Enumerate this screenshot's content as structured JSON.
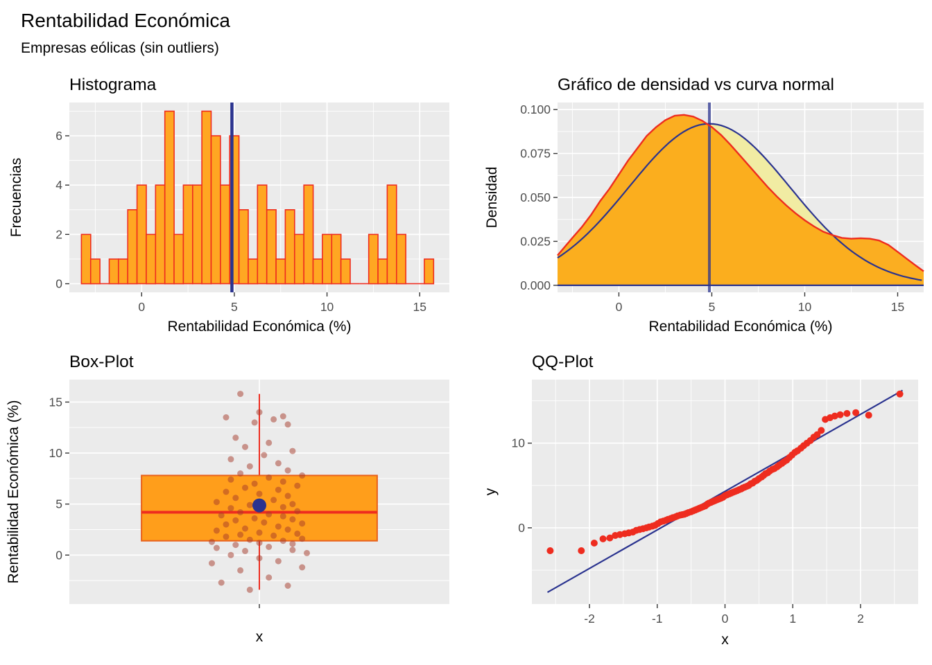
{
  "header": {
    "title": "Rentabilidad Económica",
    "subtitle": "Empresas eólicas (sin outliers)"
  },
  "colors": {
    "panel_bg": "#EBEBEB",
    "grid": "#FFFFFF",
    "bar_fill": "#FFA722",
    "red": "#EE2C1F",
    "navy": "#2A338F",
    "density_fill": "#FBAB18",
    "normal_fill": "#F1ECA3",
    "box_fill": "#FF9E1B",
    "box_stroke": "#E8601C",
    "jitter": "#A63A2A",
    "tick_text": "#4D4D4D"
  },
  "chart_data": [
    {
      "type": "bar",
      "name": "histogram",
      "title": "Histograma",
      "xlabel": "Rentabilidad Económica (%)",
      "ylabel": "Frecuencias",
      "bin_start": -3.25,
      "binwidth": 0.5,
      "counts": [
        2,
        1,
        0,
        1,
        1,
        3,
        4,
        2,
        4,
        7,
        2,
        4,
        4,
        7,
        6,
        4,
        6,
        3,
        1,
        4,
        3,
        1,
        3,
        2,
        4,
        1,
        2,
        2,
        1,
        0,
        0,
        2,
        1,
        4,
        2,
        0,
        0,
        1
      ],
      "mean_line": 4.87,
      "xlim": [
        -3.9,
        16.6
      ],
      "ylim": [
        -0.35,
        7.35
      ],
      "xticks": [
        0,
        5,
        10,
        15
      ],
      "yticks": [
        0,
        2,
        4,
        6
      ],
      "xminor": [
        -2.5,
        2.5,
        7.5,
        12.5
      ],
      "yminor": [
        1,
        3,
        5,
        7
      ]
    },
    {
      "type": "area",
      "name": "density",
      "title": "Gráfico de densidad vs curva normal",
      "xlabel": "Rentabilidad Económica (%)",
      "ylabel": "Densidad",
      "density_points": [
        [
          -3.3,
          0.017
        ],
        [
          -2.5,
          0.027
        ],
        [
          -2,
          0.033
        ],
        [
          -1.5,
          0.04
        ],
        [
          -1,
          0.048
        ],
        [
          -0.5,
          0.055
        ],
        [
          0,
          0.063
        ],
        [
          0.5,
          0.071
        ],
        [
          1,
          0.078
        ],
        [
          1.5,
          0.085
        ],
        [
          2,
          0.09
        ],
        [
          2.5,
          0.094
        ],
        [
          3,
          0.0965
        ],
        [
          3.5,
          0.097
        ],
        [
          4,
          0.096
        ],
        [
          4.5,
          0.0935
        ],
        [
          5,
          0.09
        ],
        [
          5.5,
          0.0855
        ],
        [
          6,
          0.08
        ],
        [
          6.5,
          0.074
        ],
        [
          7,
          0.068
        ],
        [
          7.5,
          0.062
        ],
        [
          8,
          0.056
        ],
        [
          8.5,
          0.0505
        ],
        [
          9,
          0.0455
        ],
        [
          9.5,
          0.041
        ],
        [
          10,
          0.037
        ],
        [
          10.5,
          0.0335
        ],
        [
          11,
          0.0305
        ],
        [
          11.5,
          0.0285
        ],
        [
          12,
          0.027
        ],
        [
          12.5,
          0.0265
        ],
        [
          13,
          0.0268
        ],
        [
          13.5,
          0.0265
        ],
        [
          14,
          0.0255
        ],
        [
          14.5,
          0.023
        ],
        [
          15,
          0.019
        ],
        [
          15.5,
          0.015
        ],
        [
          16,
          0.011
        ],
        [
          16.4,
          0.008
        ]
      ],
      "normal": {
        "mean": 4.87,
        "sd": 4.34
      },
      "mean_line": 4.87,
      "xlim": [
        -3.3,
        16.4
      ],
      "ylim": [
        -0.004,
        0.104
      ],
      "xticks": [
        0,
        5,
        10,
        15
      ],
      "yticks": [
        0,
        0.025,
        0.05,
        0.075,
        0.1
      ],
      "ytick_labels": [
        "0.000",
        "0.025",
        "0.050",
        "0.075",
        "0.100"
      ],
      "xminor": [
        -2.5,
        2.5,
        7.5,
        12.5
      ],
      "yminor": [
        0.0125,
        0.0375,
        0.0625,
        0.0875
      ]
    },
    {
      "type": "box",
      "name": "boxplot",
      "title": "Box-Plot",
      "xlabel": "x",
      "ylabel": "Rentabilidad Económica (%)",
      "stats": {
        "min": -3.4,
        "q1": 1.4,
        "median": 4.2,
        "q3": 7.8,
        "max": 15.8
      },
      "mean": 4.87,
      "box_halfwidth": 0.62,
      "jitter_spread": 0.5,
      "jitter": [
        [
          -0.1,
          -3.4
        ],
        [
          0.3,
          -3.0
        ],
        [
          -0.4,
          -2.7
        ],
        [
          0.1,
          -2.2
        ],
        [
          -0.2,
          -1.5
        ],
        [
          0.45,
          -1.2
        ],
        [
          -0.5,
          -0.8
        ],
        [
          0.2,
          -0.6
        ],
        [
          0.0,
          -0.3
        ],
        [
          -0.3,
          0.0
        ],
        [
          0.5,
          0.2
        ],
        [
          -0.15,
          0.4
        ],
        [
          0.35,
          0.5
        ],
        [
          -0.45,
          0.7
        ],
        [
          0.1,
          0.8
        ],
        [
          -0.25,
          1.0
        ],
        [
          0.35,
          1.1
        ],
        [
          0.0,
          1.2
        ],
        [
          -0.5,
          1.3
        ],
        [
          0.25,
          1.4
        ],
        [
          -0.1,
          1.5
        ],
        [
          0.45,
          1.6
        ],
        [
          -0.35,
          1.8
        ],
        [
          0.15,
          1.9
        ],
        [
          -0.2,
          2.0
        ],
        [
          0.4,
          2.1
        ],
        [
          0.0,
          2.2
        ],
        [
          -0.45,
          2.4
        ],
        [
          0.3,
          2.5
        ],
        [
          -0.15,
          2.6
        ],
        [
          0.2,
          2.8
        ],
        [
          -0.35,
          3.0
        ],
        [
          0.45,
          3.1
        ],
        [
          0.05,
          3.2
        ],
        [
          -0.25,
          3.4
        ],
        [
          0.35,
          3.5
        ],
        [
          -0.05,
          3.6
        ],
        [
          0.25,
          3.8
        ],
        [
          -0.4,
          3.9
        ],
        [
          0.1,
          4.0
        ],
        [
          -0.2,
          4.2
        ],
        [
          0.4,
          4.3
        ],
        [
          0.0,
          4.4
        ],
        [
          -0.3,
          4.6
        ],
        [
          0.25,
          4.7
        ],
        [
          -0.1,
          4.9
        ],
        [
          0.35,
          5.0
        ],
        [
          -0.45,
          5.2
        ],
        [
          0.15,
          5.4
        ],
        [
          -0.25,
          5.6
        ],
        [
          0.3,
          5.8
        ],
        [
          0.0,
          6.0
        ],
        [
          -0.35,
          6.2
        ],
        [
          0.2,
          6.4
        ],
        [
          -0.15,
          6.6
        ],
        [
          0.4,
          6.8
        ],
        [
          -0.05,
          7.0
        ],
        [
          0.25,
          7.2
        ],
        [
          -0.3,
          7.4
        ],
        [
          0.1,
          7.6
        ],
        [
          0.45,
          7.8
        ],
        [
          -0.2,
          8.0
        ],
        [
          0.3,
          8.3
        ],
        [
          -0.1,
          8.7
        ],
        [
          0.2,
          9.0
        ],
        [
          -0.3,
          9.4
        ],
        [
          0.05,
          9.8
        ],
        [
          0.35,
          10.2
        ],
        [
          -0.15,
          10.6
        ],
        [
          0.1,
          11.0
        ],
        [
          -0.25,
          11.5
        ],
        [
          0.3,
          12.8
        ],
        [
          -0.05,
          13.0
        ],
        [
          0.15,
          13.3
        ],
        [
          -0.35,
          13.5
        ],
        [
          0.25,
          13.6
        ],
        [
          0.0,
          14.0
        ],
        [
          -0.2,
          15.8
        ]
      ],
      "xlim": [
        -1,
        1
      ],
      "ylim": [
        -4.8,
        17.2
      ],
      "xticks": [
        0
      ],
      "xtick_labels": [
        ""
      ],
      "yticks": [
        0,
        5,
        10,
        15
      ],
      "yminor": [
        -2.5,
        2.5,
        7.5,
        12.5
      ]
    },
    {
      "type": "scatter",
      "name": "qq",
      "title": "QQ-Plot",
      "xlabel": "x",
      "ylabel": "y",
      "points": [
        [
          -2.58,
          -2.7
        ],
        [
          -2.12,
          -2.7
        ],
        [
          -1.93,
          -1.8
        ],
        [
          -1.8,
          -1.3
        ],
        [
          -1.7,
          -1.2
        ],
        [
          -1.62,
          -0.9
        ],
        [
          -1.55,
          -0.8
        ],
        [
          -1.48,
          -0.7
        ],
        [
          -1.42,
          -0.6
        ],
        [
          -1.36,
          -0.5
        ],
        [
          -1.31,
          -0.3
        ],
        [
          -1.26,
          -0.2
        ],
        [
          -1.21,
          -0.1
        ],
        [
          -1.16,
          0
        ],
        [
          -1.12,
          0.1
        ],
        [
          -1.07,
          0.2
        ],
        [
          -1.03,
          0.3
        ],
        [
          -0.99,
          0.5
        ],
        [
          -0.95,
          0.7
        ],
        [
          -0.91,
          0.8
        ],
        [
          -0.87,
          0.9
        ],
        [
          -0.84,
          1
        ],
        [
          -0.8,
          1.1
        ],
        [
          -0.77,
          1.2
        ],
        [
          -0.73,
          1.3
        ],
        [
          -0.7,
          1.4
        ],
        [
          -0.66,
          1.5
        ],
        [
          -0.63,
          1.55
        ],
        [
          -0.6,
          1.6
        ],
        [
          -0.57,
          1.7
        ],
        [
          -0.54,
          1.8
        ],
        [
          -0.5,
          1.9
        ],
        [
          -0.47,
          2
        ],
        [
          -0.44,
          2.1
        ],
        [
          -0.41,
          2.2
        ],
        [
          -0.38,
          2.3
        ],
        [
          -0.35,
          2.4
        ],
        [
          -0.32,
          2.5
        ],
        [
          -0.29,
          2.6
        ],
        [
          -0.26,
          2.8
        ],
        [
          -0.24,
          2.9
        ],
        [
          -0.21,
          3
        ],
        [
          -0.18,
          3.1
        ],
        [
          -0.15,
          3.2
        ],
        [
          -0.12,
          3.3
        ],
        [
          -0.09,
          3.4
        ],
        [
          -0.06,
          3.5
        ],
        [
          -0.03,
          3.6
        ],
        [
          0,
          3.8
        ],
        [
          0.03,
          3.9
        ],
        [
          0.06,
          4
        ],
        [
          0.09,
          4.1
        ],
        [
          0.12,
          4.2
        ],
        [
          0.15,
          4.3
        ],
        [
          0.18,
          4.4
        ],
        [
          0.21,
          4.5
        ],
        [
          0.24,
          4.6
        ],
        [
          0.26,
          4.7
        ],
        [
          0.29,
          4.8
        ],
        [
          0.32,
          4.9
        ],
        [
          0.35,
          5
        ],
        [
          0.38,
          5.2
        ],
        [
          0.41,
          5.3
        ],
        [
          0.44,
          5.5
        ],
        [
          0.47,
          5.6
        ],
        [
          0.5,
          5.8
        ],
        [
          0.54,
          6
        ],
        [
          0.57,
          6.2
        ],
        [
          0.6,
          6.4
        ],
        [
          0.63,
          6.5
        ],
        [
          0.66,
          6.7
        ],
        [
          0.7,
          6.9
        ],
        [
          0.73,
          7
        ],
        [
          0.77,
          7.2
        ],
        [
          0.8,
          7.4
        ],
        [
          0.84,
          7.6
        ],
        [
          0.87,
          7.8
        ],
        [
          0.91,
          8
        ],
        [
          0.95,
          8.3
        ],
        [
          0.99,
          8.6
        ],
        [
          1.03,
          8.9
        ],
        [
          1.07,
          9.1
        ],
        [
          1.12,
          9.4
        ],
        [
          1.16,
          9.7
        ],
        [
          1.21,
          10
        ],
        [
          1.26,
          10.3
        ],
        [
          1.31,
          10.7
        ],
        [
          1.36,
          11
        ],
        [
          1.42,
          11.5
        ],
        [
          1.48,
          12.8
        ],
        [
          1.55,
          13
        ],
        [
          1.62,
          13.2
        ],
        [
          1.7,
          13.35
        ],
        [
          1.8,
          13.5
        ],
        [
          1.93,
          13.6
        ],
        [
          2.12,
          13.3
        ],
        [
          2.58,
          15.8
        ]
      ],
      "line": {
        "intercept": 4.3,
        "slope": 4.55,
        "x0": -2.62,
        "x1": 2.62
      },
      "xlim": [
        -2.85,
        2.85
      ],
      "ylim": [
        -9,
        17.5
      ],
      "xticks": [
        -2,
        -1,
        0,
        1,
        2
      ],
      "yticks": [
        0,
        10
      ],
      "xminor": [
        -2.5,
        -1.5,
        -0.5,
        0.5,
        1.5,
        2.5
      ],
      "yminor": [
        -5,
        5,
        15
      ]
    }
  ]
}
